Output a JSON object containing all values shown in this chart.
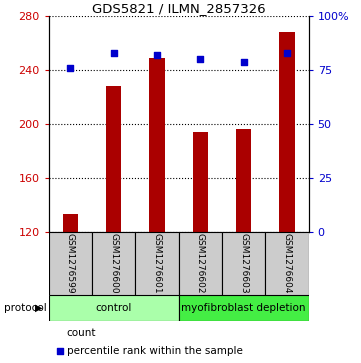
{
  "title": "GDS5821 / ILMN_2857326",
  "samples": [
    "GSM1276599",
    "GSM1276600",
    "GSM1276601",
    "GSM1276602",
    "GSM1276603",
    "GSM1276604"
  ],
  "counts": [
    133,
    228,
    249,
    194,
    196,
    268
  ],
  "percentile_ranks": [
    76,
    83,
    82,
    80,
    79,
    83
  ],
  "ylim_left": [
    120,
    280
  ],
  "yticks_left": [
    120,
    160,
    200,
    240,
    280
  ],
  "ylim_right": [
    0,
    100
  ],
  "yticks_right": [
    0,
    25,
    50,
    75,
    100
  ],
  "bar_color": "#aa0000",
  "dot_color": "#0000cc",
  "bar_width": 0.35,
  "protocol_colors": {
    "control": "#aaffaa",
    "myofibroblast depletion": "#44ee44"
  },
  "bg_color": "#ffffff",
  "label_area_color": "#cccccc",
  "left_axis_color": "#cc0000",
  "right_axis_color": "#0000cc"
}
